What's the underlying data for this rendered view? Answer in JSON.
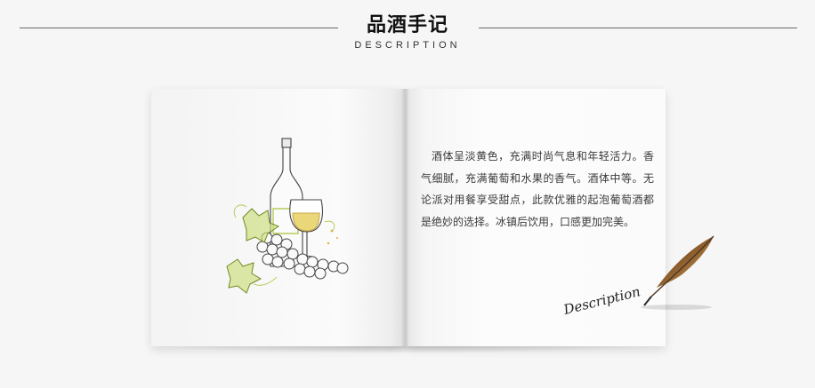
{
  "header": {
    "title": "品酒手记",
    "subtitle": "DESCRIPTION"
  },
  "book": {
    "description": "酒体呈淡黄色，充满时尚气息和年轻活力。香气细腻，充满葡萄和水果的香气。酒体中等。无论派对用餐享受甜点，此款优雅的起泡葡萄酒都是绝妙的选择。冰镇后饮用，口感更加完美。",
    "signature": "Description"
  },
  "icons": {
    "illustration": "wine-bottle-glass-grapes-icon",
    "quill": "quill-feather-icon"
  },
  "colors": {
    "accent_green": "#a8c43a",
    "wine_yellow": "#e9d77a"
  }
}
